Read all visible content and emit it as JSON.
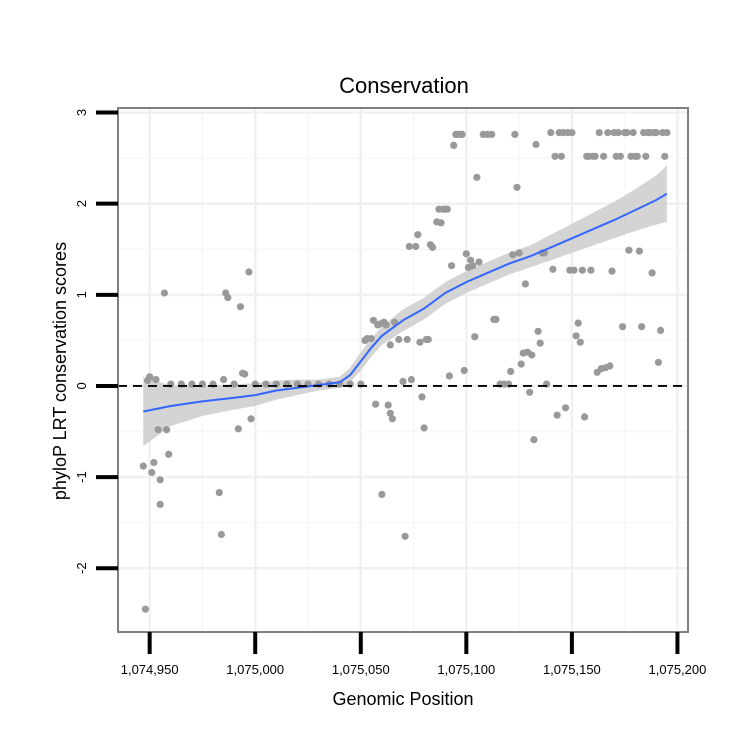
{
  "chart_data": {
    "type": "scatter",
    "title": "Conservation",
    "xlabel": "Genomic Position",
    "ylabel": "phyloP LRT conservation scores",
    "xlim": [
      1074935,
      1075205
    ],
    "ylim": [
      -2.7,
      3.05
    ],
    "x_ticks": [
      {
        "value": 1074950,
        "label": "1,074,950"
      },
      {
        "value": 1075000,
        "label": "1,075,000"
      },
      {
        "value": 1075050,
        "label": "1,075,050"
      },
      {
        "value": 1075100,
        "label": "1,075,100"
      },
      {
        "value": 1075150,
        "label": "1,075,150"
      },
      {
        "value": 1075200,
        "label": "1,075,200"
      }
    ],
    "y_ticks": [
      {
        "value": 3,
        "label": "3"
      },
      {
        "value": 2,
        "label": "2"
      },
      {
        "value": 1,
        "label": "1"
      },
      {
        "value": 0,
        "label": "0"
      },
      {
        "value": -1,
        "label": "-1"
      },
      {
        "value": -2,
        "label": "-2"
      }
    ],
    "x_minor_grid": [
      1074975,
      1075025,
      1075075,
      1075125,
      1075175
    ],
    "y_minor_grid": [
      2.5,
      1.5,
      0.5,
      -0.5,
      -1.5
    ],
    "reference_line": {
      "y": 0,
      "style": "dashed"
    },
    "series": [
      {
        "name": "observed",
        "kind": "points",
        "color": "#999999",
        "points": [
          [
            1074947,
            -0.88
          ],
          [
            1074948,
            -2.45
          ],
          [
            1074949,
            0.06
          ],
          [
            1074950,
            0.1
          ],
          [
            1074951,
            -0.95
          ],
          [
            1074952,
            -0.84
          ],
          [
            1074953,
            0.07
          ],
          [
            1074954,
            -0.48
          ],
          [
            1074955,
            -1.03
          ],
          [
            1074955,
            -1.3
          ],
          [
            1074957,
            1.02
          ],
          [
            1074958,
            -0.48
          ],
          [
            1074959,
            -0.75
          ],
          [
            1074960,
            0.02
          ],
          [
            1074965,
            0.02
          ],
          [
            1074970,
            0.02
          ],
          [
            1074975,
            0.02
          ],
          [
            1074980,
            0.02
          ],
          [
            1074983,
            -1.17
          ],
          [
            1074984,
            -1.63
          ],
          [
            1074985,
            0.07
          ],
          [
            1074986,
            1.02
          ],
          [
            1074987,
            0.97
          ],
          [
            1074990,
            0.02
          ],
          [
            1074992,
            -0.47
          ],
          [
            1074993,
            0.87
          ],
          [
            1074994,
            0.14
          ],
          [
            1074995,
            0.13
          ],
          [
            1074997,
            1.25
          ],
          [
            1074998,
            -0.36
          ],
          [
            1075000,
            0.02
          ],
          [
            1075005,
            0.02
          ],
          [
            1075010,
            0.02
          ],
          [
            1075015,
            0.02
          ],
          [
            1075020,
            0.02
          ],
          [
            1075025,
            0.02
          ],
          [
            1075030,
            0.02
          ],
          [
            1075035,
            0.02
          ],
          [
            1075040,
            0.02
          ],
          [
            1075045,
            0.02
          ],
          [
            1075050,
            0.02
          ],
          [
            1075052,
            0.5
          ],
          [
            1075053,
            0.52
          ],
          [
            1075055,
            0.52
          ],
          [
            1075056,
            0.72
          ],
          [
            1075057,
            -0.2
          ],
          [
            1075058,
            0.67
          ],
          [
            1075059,
            0.68
          ],
          [
            1075060,
            -1.19
          ],
          [
            1075061,
            0.7
          ],
          [
            1075062,
            0.67
          ],
          [
            1075063,
            -0.21
          ],
          [
            1075064,
            -0.3
          ],
          [
            1075064,
            0.45
          ],
          [
            1075065,
            -0.36
          ],
          [
            1075066,
            0.7
          ],
          [
            1075068,
            0.51
          ],
          [
            1075070,
            0.05
          ],
          [
            1075071,
            -1.65
          ],
          [
            1075072,
            0.51
          ],
          [
            1075073,
            1.53
          ],
          [
            1075074,
            0.07
          ],
          [
            1075076,
            1.53
          ],
          [
            1075077,
            1.66
          ],
          [
            1075078,
            0.48
          ],
          [
            1075079,
            -0.12
          ],
          [
            1075080,
            -0.46
          ],
          [
            1075081,
            0.51
          ],
          [
            1075082,
            0.51
          ],
          [
            1075083,
            1.55
          ],
          [
            1075084,
            1.52
          ],
          [
            1075086,
            1.8
          ],
          [
            1075087,
            1.94
          ],
          [
            1075088,
            1.79
          ],
          [
            1075089,
            1.94
          ],
          [
            1075090,
            1.94
          ],
          [
            1075091,
            1.94
          ],
          [
            1075092,
            0.11
          ],
          [
            1075093,
            1.32
          ],
          [
            1075094,
            2.64
          ],
          [
            1075095,
            2.76
          ],
          [
            1075096,
            2.76
          ],
          [
            1075097,
            2.76
          ],
          [
            1075098,
            2.76
          ],
          [
            1075099,
            0.17
          ],
          [
            1075100,
            1.45
          ],
          [
            1075101,
            1.3
          ],
          [
            1075102,
            1.38
          ],
          [
            1075103,
            1.32
          ],
          [
            1075104,
            0.54
          ],
          [
            1075105,
            2.29
          ],
          [
            1075106,
            1.36
          ],
          [
            1075108,
            2.76
          ],
          [
            1075110,
            2.76
          ],
          [
            1075112,
            2.76
          ],
          [
            1075113,
            0.73
          ],
          [
            1075114,
            0.73
          ],
          [
            1075116,
            0.02
          ],
          [
            1075118,
            0.02
          ],
          [
            1075120,
            0.02
          ],
          [
            1075121,
            0.16
          ],
          [
            1075122,
            1.44
          ],
          [
            1075123,
            2.76
          ],
          [
            1075124,
            2.18
          ],
          [
            1075125,
            1.46
          ],
          [
            1075126,
            0.24
          ],
          [
            1075127,
            0.36
          ],
          [
            1075128,
            1.12
          ],
          [
            1075129,
            0.37
          ],
          [
            1075130,
            -0.07
          ],
          [
            1075131,
            0.34
          ],
          [
            1075132,
            -0.59
          ],
          [
            1075133,
            2.65
          ],
          [
            1075134,
            0.6
          ],
          [
            1075135,
            0.47
          ],
          [
            1075136,
            1.46
          ],
          [
            1075137,
            1.46
          ],
          [
            1075138,
            0.02
          ],
          [
            1075140,
            2.78
          ],
          [
            1075141,
            1.28
          ],
          [
            1075142,
            2.52
          ],
          [
            1075143,
            -0.32
          ],
          [
            1075144,
            2.78
          ],
          [
            1075145,
            2.52
          ],
          [
            1075146,
            2.78
          ],
          [
            1075147,
            -0.24
          ],
          [
            1075148,
            2.78
          ],
          [
            1075149,
            1.27
          ],
          [
            1075150,
            2.78
          ],
          [
            1075151,
            1.27
          ],
          [
            1075152,
            0.55
          ],
          [
            1075153,
            0.69
          ],
          [
            1075154,
            0.48
          ],
          [
            1075155,
            1.27
          ],
          [
            1075156,
            -0.34
          ],
          [
            1075157,
            2.52
          ],
          [
            1075158,
            2.52
          ],
          [
            1075159,
            1.27
          ],
          [
            1075160,
            2.52
          ],
          [
            1075161,
            2.52
          ],
          [
            1075162,
            0.15
          ],
          [
            1075163,
            2.78
          ],
          [
            1075164,
            0.19
          ],
          [
            1075165,
            2.52
          ],
          [
            1075166,
            0.2
          ],
          [
            1075167,
            2.78
          ],
          [
            1075168,
            0.22
          ],
          [
            1075169,
            1.26
          ],
          [
            1075170,
            2.78
          ],
          [
            1075171,
            2.52
          ],
          [
            1075172,
            2.78
          ],
          [
            1075173,
            2.52
          ],
          [
            1075174,
            0.65
          ],
          [
            1075175,
            2.78
          ],
          [
            1075176,
            2.78
          ],
          [
            1075177,
            1.49
          ],
          [
            1075178,
            2.52
          ],
          [
            1075179,
            2.78
          ],
          [
            1075180,
            2.52
          ],
          [
            1075181,
            2.52
          ],
          [
            1075182,
            1.48
          ],
          [
            1075183,
            0.65
          ],
          [
            1075184,
            2.78
          ],
          [
            1075185,
            2.52
          ],
          [
            1075186,
            2.78
          ],
          [
            1075187,
            2.78
          ],
          [
            1075188,
            1.24
          ],
          [
            1075189,
            2.78
          ],
          [
            1075190,
            2.78
          ],
          [
            1075191,
            0.26
          ],
          [
            1075192,
            0.61
          ],
          [
            1075193,
            2.78
          ],
          [
            1075194,
            2.52
          ],
          [
            1075195,
            2.78
          ]
        ]
      },
      {
        "name": "smooth",
        "kind": "line",
        "color": "#3366ff",
        "points": [
          [
            1074947,
            -0.28
          ],
          [
            1074960,
            -0.22
          ],
          [
            1074975,
            -0.17
          ],
          [
            1074990,
            -0.13
          ],
          [
            1075000,
            -0.1
          ],
          [
            1075010,
            -0.05
          ],
          [
            1075020,
            -0.02
          ],
          [
            1075030,
            0.01
          ],
          [
            1075040,
            0.04
          ],
          [
            1075045,
            0.12
          ],
          [
            1075050,
            0.27
          ],
          [
            1075055,
            0.42
          ],
          [
            1075060,
            0.55
          ],
          [
            1075070,
            0.72
          ],
          [
            1075080,
            0.85
          ],
          [
            1075090,
            1.02
          ],
          [
            1075100,
            1.14
          ],
          [
            1075110,
            1.24
          ],
          [
            1075120,
            1.34
          ],
          [
            1075130,
            1.42
          ],
          [
            1075140,
            1.52
          ],
          [
            1075150,
            1.62
          ],
          [
            1075160,
            1.72
          ],
          [
            1075170,
            1.82
          ],
          [
            1075180,
            1.93
          ],
          [
            1075190,
            2.04
          ],
          [
            1075195,
            2.11
          ]
        ]
      },
      {
        "name": "confidence band",
        "kind": "band",
        "color": "#cccccc",
        "points": [
          [
            1074947,
            -0.66,
            0.1
          ],
          [
            1074960,
            -0.44,
            0.0
          ],
          [
            1074975,
            -0.33,
            0.0
          ],
          [
            1074990,
            -0.26,
            0.02
          ],
          [
            1075000,
            -0.22,
            0.03
          ],
          [
            1075010,
            -0.15,
            0.06
          ],
          [
            1075020,
            -0.1,
            0.07
          ],
          [
            1075030,
            -0.05,
            0.07
          ],
          [
            1075040,
            -0.02,
            0.1
          ],
          [
            1075045,
            0.04,
            0.2
          ],
          [
            1075050,
            0.17,
            0.37
          ],
          [
            1075055,
            0.32,
            0.52
          ],
          [
            1075060,
            0.45,
            0.65
          ],
          [
            1075070,
            0.6,
            0.84
          ],
          [
            1075080,
            0.73,
            0.97
          ],
          [
            1075090,
            0.9,
            1.14
          ],
          [
            1075100,
            1.02,
            1.26
          ],
          [
            1075110,
            1.12,
            1.36
          ],
          [
            1075120,
            1.22,
            1.46
          ],
          [
            1075130,
            1.3,
            1.54
          ],
          [
            1075140,
            1.38,
            1.66
          ],
          [
            1075150,
            1.46,
            1.78
          ],
          [
            1075160,
            1.54,
            1.9
          ],
          [
            1075170,
            1.62,
            2.02
          ],
          [
            1075180,
            1.7,
            2.16
          ],
          [
            1075190,
            1.77,
            2.31
          ],
          [
            1075195,
            1.8,
            2.42
          ]
        ]
      }
    ]
  }
}
